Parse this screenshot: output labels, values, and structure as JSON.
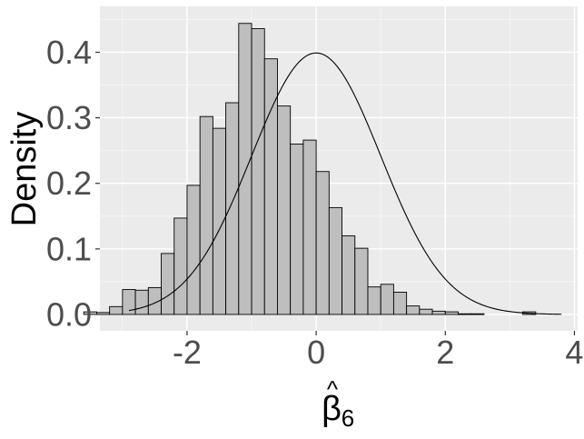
{
  "chart_data": {
    "type": "bar",
    "xlabel": "β̂6",
    "xlabel_symbol": "β",
    "xlabel_subscript": "6",
    "ylabel": "Density",
    "xlim": [
      -3.35,
      4.05
    ],
    "ylim": [
      -0.025,
      0.47
    ],
    "x_ticks": [
      -2,
      0,
      2,
      4
    ],
    "x_tick_labels": [
      "-2",
      "0",
      "2",
      "4"
    ],
    "y_ticks": [
      0.0,
      0.1,
      0.2,
      0.3,
      0.4
    ],
    "y_tick_labels": [
      "0.0",
      "0.1",
      "0.2",
      "0.3",
      "0.4"
    ],
    "grid": true,
    "bin_width": 0.2,
    "bins": [
      {
        "x": -3.1,
        "density": 0.004
      },
      {
        "x": -2.9,
        "density": 0.003
      },
      {
        "x": -2.7,
        "density": 0.012
      },
      {
        "x": -2.5,
        "density": 0.038
      },
      {
        "x": -2.3,
        "density": 0.037
      },
      {
        "x": -2.1,
        "density": 0.041
      },
      {
        "x": -1.9,
        "density": 0.093
      },
      {
        "x": -1.7,
        "density": 0.147
      },
      {
        "x": -1.5,
        "density": 0.197
      },
      {
        "x": -1.3,
        "density": 0.302
      },
      {
        "x": -1.1,
        "density": 0.284
      },
      {
        "x": -0.9,
        "density": 0.323
      },
      {
        "x": -0.7,
        "density": 0.444
      },
      {
        "x": -0.5,
        "density": 0.436
      },
      {
        "x": -0.3,
        "density": 0.39
      },
      {
        "x": -0.1,
        "density": 0.318
      },
      {
        "x": 0.1,
        "density": 0.26
      },
      {
        "x": 0.3,
        "density": 0.266
      },
      {
        "x": 0.5,
        "density": 0.218
      },
      {
        "x": 0.7,
        "density": 0.163
      },
      {
        "x": 0.9,
        "density": 0.12
      },
      {
        "x": 1.1,
        "density": 0.101
      },
      {
        "x": 1.3,
        "density": 0.042
      },
      {
        "x": 1.5,
        "density": 0.046
      },
      {
        "x": 1.7,
        "density": 0.034
      },
      {
        "x": 1.9,
        "density": 0.013
      },
      {
        "x": 2.1,
        "density": 0.008
      },
      {
        "x": 2.3,
        "density": 0.005
      },
      {
        "x": 2.5,
        "density": 0.004
      },
      {
        "x": 2.7,
        "density": 0.001
      },
      {
        "x": 2.9,
        "density": 0.001
      },
      {
        "x": 3.7,
        "density": 0.004
      }
    ],
    "bin_shift": -0.4,
    "curve": {
      "type": "normal_density",
      "mean": 0,
      "sd": 1
    },
    "colors": {
      "panel_background": "#ebebeb",
      "grid_major": "#ffffff",
      "grid_minor": "#f5f5f5",
      "bar_fill": "#bebebe",
      "bar_outline": "#000000",
      "curve": "#000000"
    }
  }
}
